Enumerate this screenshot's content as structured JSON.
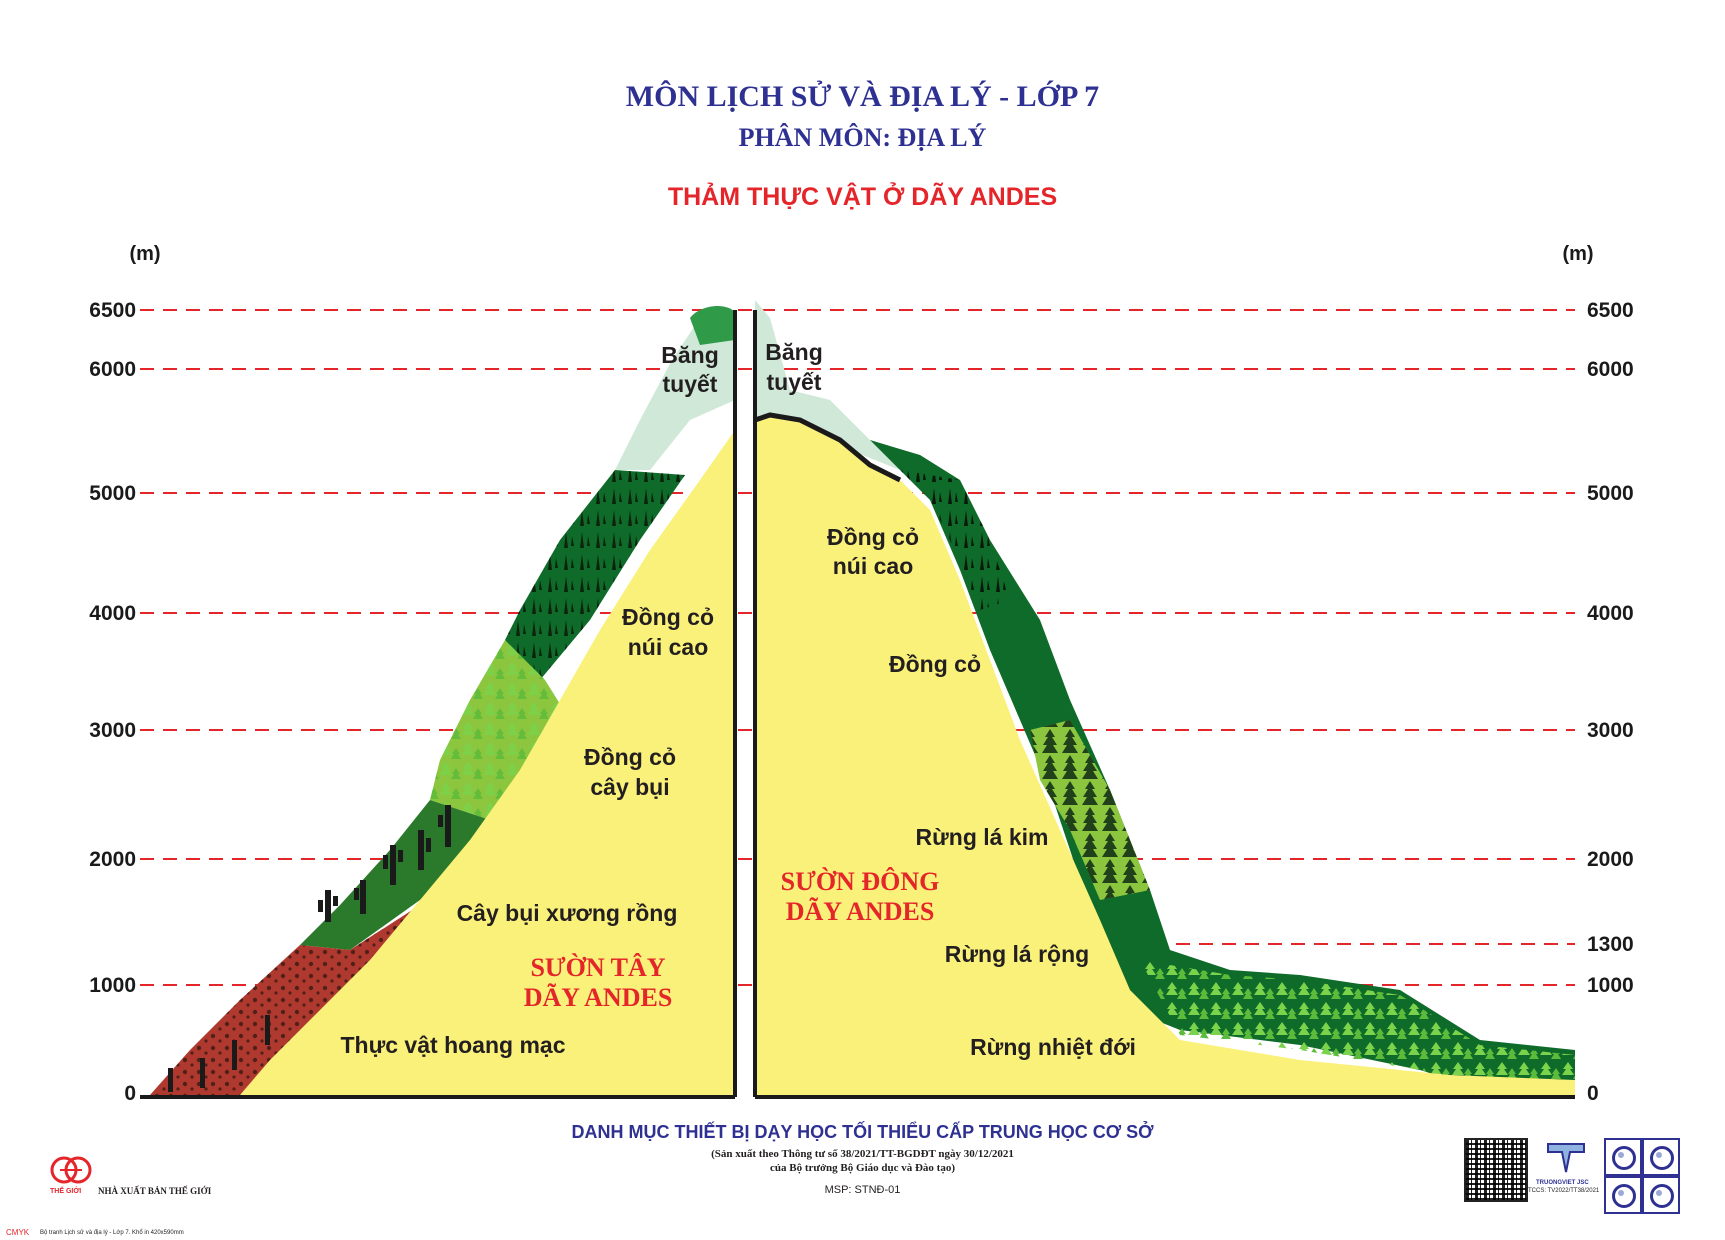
{
  "header": {
    "title": "MÔN LỊCH SỬ VÀ ĐỊA LÝ - LỚP 7",
    "subtitle": "PHÂN MÔN: ĐỊA LÝ",
    "diagram_title": "THẢM THỰC VẬT Ở DÃY ANDES"
  },
  "axes": {
    "left_unit": "(m)",
    "right_unit": "(m)",
    "left_ticks": [
      "6500",
      "6000",
      "5000",
      "4000",
      "3000",
      "2000",
      "1000",
      "0"
    ],
    "right_ticks": [
      "6500",
      "6000",
      "5000",
      "4000",
      "3000",
      "2000",
      "1300",
      "1000",
      "0"
    ]
  },
  "west_slope": {
    "name_line1": "SƯỜN TÂY",
    "name_line2": "DÃY ANDES",
    "zones": {
      "snow_l1": "Băng",
      "snow_l2": "tuyết",
      "alpine_l1": "Đồng cỏ",
      "alpine_l2": "núi cao",
      "shrub_l1": "Đồng cỏ",
      "shrub_l2": "cây bụi",
      "cactus": "Cây bụi xương rồng",
      "desert": "Thực vật hoang mạc"
    }
  },
  "east_slope": {
    "name_line1": "SƯỜN ĐÔNG",
    "name_line2": "DÃY ANDES",
    "zones": {
      "snow_l1": "Băng",
      "snow_l2": "tuyết",
      "alpine_l1": "Đồng cỏ",
      "alpine_l2": "núi cao",
      "grass": "Đồng cỏ",
      "conifer": "Rừng lá kim",
      "broadleaf": "Rừng lá rộng",
      "tropical": "Rừng nhiệt đới"
    }
  },
  "colors": {
    "title_blue": "#2e3192",
    "title_red": "#e4252a",
    "slope_label_red": "#e4252a",
    "mountain_yellow": "#faf17a",
    "forest_dark": "#0f6b2a",
    "shrub_green": "#8cc63f",
    "snow": "#cfe8d8",
    "desert_red": "#b0392f",
    "dash_red": "#e4252a"
  },
  "footer": {
    "main": "DANH MỤC THIẾT BỊ DẠY HỌC TỐI THIỂU CẤP TRUNG HỌC CƠ SỞ",
    "sub1": "(Sản xuất theo Thông tư số 38/2021/TT-BGDĐT ngày 30/12/2021",
    "sub2": "của Bộ trưởng Bộ Giáo dục và Đào tạo)",
    "msp": "MSP: STNĐ-01",
    "publisher": "NHÀ XUẤT BẢN THẾ GIỚI",
    "publisher_logo_label": "THẾ GIỚI",
    "tv_label": "TRUONGVIET JSC",
    "tccs": "TCCS: TV2022/TT38/2021",
    "cmyk": "CMYK",
    "print_note": "Bộ tranh Lịch sử và địa lý - Lớp 7. Khổ in 420x590mm"
  }
}
